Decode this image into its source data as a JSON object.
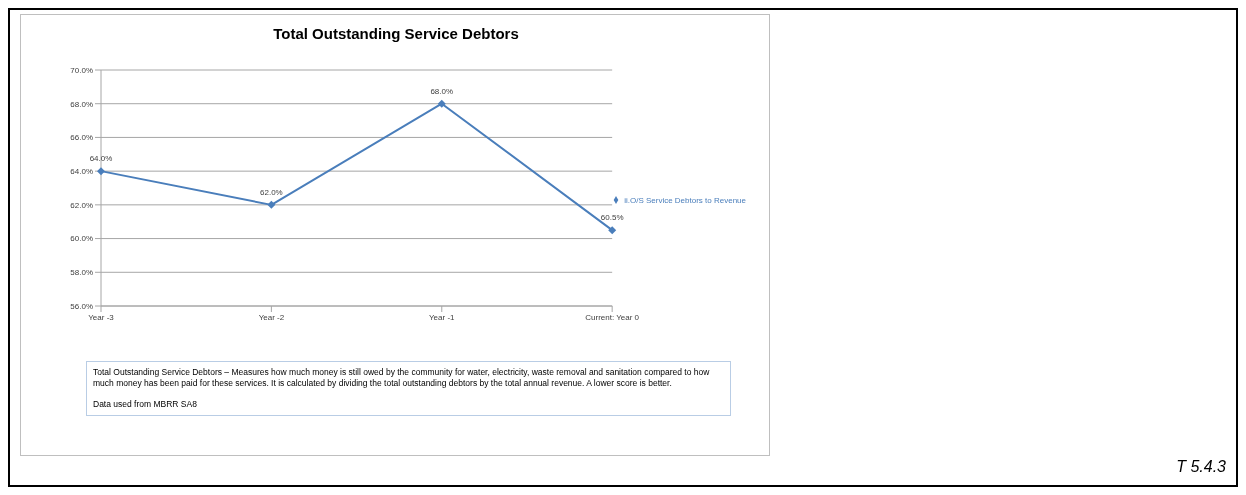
{
  "chart_data": {
    "type": "line",
    "title": "Total Outstanding Service Debtors",
    "categories": [
      "Year -3",
      "Year -2",
      "Year -1",
      "Current: Year 0"
    ],
    "series": [
      {
        "name": "ii.O/S Service Debtors to Revenue",
        "color": "#4a7ebb",
        "values": [
          64.0,
          62.0,
          68.0,
          60.5
        ],
        "value_labels": [
          "64.0%",
          "62.0%",
          "68.0%",
          "60.5%"
        ]
      }
    ],
    "ylim": [
      56,
      70
    ],
    "yticks": [
      {
        "value": 56,
        "label": "56.0%"
      },
      {
        "value": 58,
        "label": "58.0%"
      },
      {
        "value": 60,
        "label": "60.0%"
      },
      {
        "value": 62,
        "label": "62.0%"
      },
      {
        "value": 64,
        "label": "64.0%"
      },
      {
        "value": 66,
        "label": "66.0%"
      },
      {
        "value": 68,
        "label": "68.0%"
      },
      {
        "value": 70,
        "label": "70.0%"
      }
    ],
    "grid": "y",
    "legend": "right",
    "marker": "diamond",
    "line_style": "solid",
    "annotations": [
      "Total Outstanding Service Debtors – Measures how much money is still owed by the community for water, electricity, waste removal  and sanitation compared to how much money has been paid for these services. It is calculated by dividing the total outstanding debtors by the total annual revenue. A lower score is better.",
      "Data used from MBRR SA8",
      "T 5.4.3"
    ]
  }
}
